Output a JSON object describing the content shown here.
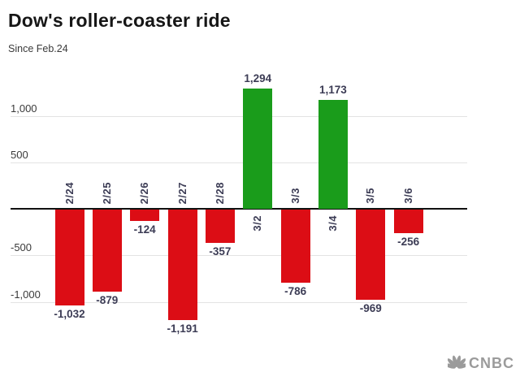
{
  "header": {
    "title": "Dow's roller-coaster ride",
    "subtitle": "Since Feb.24"
  },
  "branding": {
    "logo_text": "CNBC",
    "logo_color": "#9b9b9b",
    "icon": "peacock-icon"
  },
  "colors": {
    "positive_bar": "#1a9c1b",
    "negative_bar": "#dc0d15",
    "gridline": "#e3e3e3",
    "axis": "#111111",
    "data_label": "#3c3c55",
    "tick_label": "#3a3a3a"
  },
  "chart_data": {
    "type": "bar",
    "title": "Dow's roller-coaster ride",
    "subtitle": "Since Feb.24",
    "categories": [
      "2/24",
      "2/25",
      "2/26",
      "2/27",
      "2/28",
      "3/2",
      "3/3",
      "3/4",
      "3/5",
      "3/6"
    ],
    "values": [
      -1032,
      -879,
      -124,
      -1191,
      -357,
      1294,
      -786,
      1173,
      -969,
      -256
    ],
    "value_labels": [
      "-1,032",
      "-879",
      "-124",
      "-1,191",
      "-357",
      "1,294",
      "-786",
      "1,173",
      "-969",
      "-256"
    ],
    "xlabel": "",
    "ylabel": "",
    "y_ticks": [
      1000,
      500,
      -500,
      -1000
    ],
    "y_tick_labels": [
      "1,000",
      "500",
      "-500",
      "-1,000"
    ],
    "ylim": [
      -1400,
      1500
    ],
    "grid": true,
    "legend": false,
    "zero_baseline": true,
    "x_label_rotation": 90,
    "positive_color": "#1a9c1b",
    "negative_color": "#dc0d15"
  }
}
